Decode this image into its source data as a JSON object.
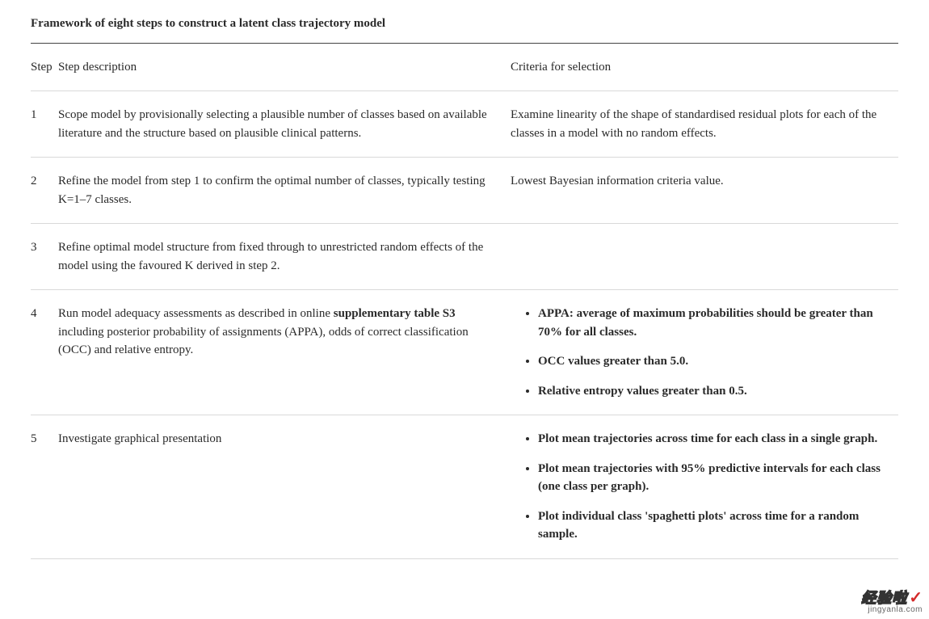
{
  "title": "Framework of eight steps to construct a latent class trajectory model",
  "headers": {
    "step": "Step",
    "desc": "Step description",
    "criteria": "Criteria for selection"
  },
  "rows": [
    {
      "num": "1",
      "desc_plain": "Scope model by provisionally selecting a plausible number of classes based on available literature and the structure based on plausible clinical patterns.",
      "criteria_plain": "Examine linearity of the shape of standardised residual plots for each of the classes in a model with no random effects."
    },
    {
      "num": "2",
      "desc_plain": "Refine the model from step 1 to confirm the optimal number of classes, typically testing K=1–7 classes.",
      "criteria_plain": "Lowest Bayesian information criteria value."
    },
    {
      "num": "3",
      "desc_plain": "Refine optimal model structure from fixed through to unrestricted random effects of the model using the favoured K derived in step 2.",
      "criteria_plain": ""
    },
    {
      "num": "4",
      "desc_pre": "Run model adequacy assessments as described in online ",
      "desc_bold": "supplementary table S3",
      "desc_post": " including posterior probability of assignments (APPA), odds of correct classification (OCC) and relative entropy.",
      "criteria_list": [
        "APPA: average of maximum probabilities should be greater than 70% for all classes.",
        "OCC values greater than 5.0.",
        "Relative entropy values greater than 0.5."
      ]
    },
    {
      "num": "5",
      "desc_plain": "Investigate graphical presentation",
      "criteria_list": [
        "Plot mean trajectories across time for each class in a single graph.",
        "Plot mean trajectories with 95% predictive intervals for each class (one class per graph).",
        "Plot individual class 'spaghetti plots' across time for a random sample."
      ]
    }
  ],
  "watermark": {
    "top": "经验啦",
    "sub": "jingyanla.com"
  },
  "colors": {
    "text": "#2a2a2a",
    "border_heavy": "#444444",
    "border_light": "#d9d9d9",
    "background": "#ffffff",
    "wm_red": "#d42a2a"
  }
}
